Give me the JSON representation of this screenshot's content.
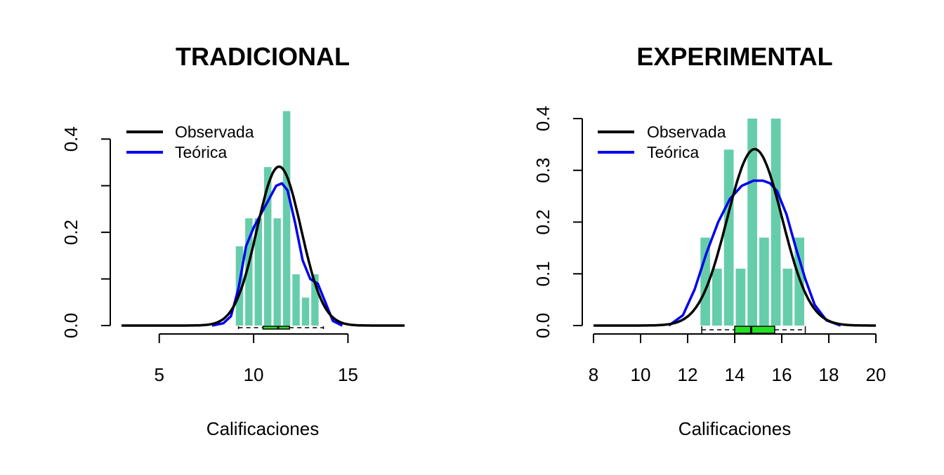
{
  "colors": {
    "bars": "#66CDAA",
    "observed": "#000000",
    "theoretical": "#0000EE",
    "boxplot": "#22E022"
  },
  "chart_data": [
    {
      "type": "bar",
      "subtype": "histogram_with_density",
      "title": "TRADICIONAL",
      "xlabel": "Calificaciones",
      "ylabel": "",
      "xlim": [
        3,
        18
      ],
      "ylim": [
        0,
        0.45
      ],
      "x_ticks": [
        5,
        10,
        15
      ],
      "x_tick_labels": [
        "5",
        "10",
        "15"
      ],
      "y_ticks": [
        0.0,
        0.1,
        0.2,
        0.3,
        0.4
      ],
      "y_tick_labels": [
        "0.0",
        "",
        "0.2",
        "",
        "0.4"
      ],
      "grid": false,
      "legend": {
        "position": "top-left",
        "entries": [
          {
            "label": "Observada",
            "color": "#000000"
          },
          {
            "label": "Teórica",
            "color": "#0000EE"
          }
        ]
      },
      "bars": [
        {
          "x0": 9.0,
          "x1": 9.5,
          "value": 0.17
        },
        {
          "x0": 9.5,
          "x1": 10.0,
          "value": 0.23
        },
        {
          "x0": 10.0,
          "x1": 10.5,
          "value": 0.23
        },
        {
          "x0": 10.5,
          "x1": 11.0,
          "value": 0.34
        },
        {
          "x0": 11.0,
          "x1": 11.5,
          "value": 0.23
        },
        {
          "x0": 11.5,
          "x1": 12.0,
          "value": 0.46
        },
        {
          "x0": 12.0,
          "x1": 12.5,
          "value": 0.11
        },
        {
          "x0": 12.5,
          "x1": 13.0,
          "value": 0.06
        },
        {
          "x0": 13.0,
          "x1": 13.5,
          "value": 0.11
        }
      ],
      "series": [
        {
          "name": "Observada",
          "kind": "normal",
          "mean": 11.35,
          "sd": 1.17,
          "x_range": [
            3,
            18
          ]
        },
        {
          "name": "Teórica",
          "kind": "density",
          "x": [
            7.8,
            8.4,
            8.8,
            9.2,
            9.6,
            10.0,
            10.4,
            10.8,
            11.2,
            11.5,
            11.8,
            12.2,
            12.6,
            13.0,
            13.4,
            13.8,
            14.2,
            14.7
          ],
          "y": [
            0.0,
            0.005,
            0.02,
            0.08,
            0.17,
            0.21,
            0.24,
            0.27,
            0.3,
            0.305,
            0.29,
            0.22,
            0.14,
            0.1,
            0.09,
            0.05,
            0.01,
            0.0
          ]
        }
      ],
      "boxplot": {
        "whisker_low": 9.2,
        "q1": 10.5,
        "median": 11.3,
        "q3": 11.9,
        "whisker_high": 13.7
      }
    },
    {
      "type": "bar",
      "subtype": "histogram_with_density",
      "title": "EXPERIMENTAL",
      "xlabel": "Calificaciones",
      "ylabel": "",
      "xlim": [
        8,
        20
      ],
      "ylim": [
        0,
        0.4
      ],
      "x_ticks": [
        8,
        10,
        12,
        14,
        16,
        18,
        20
      ],
      "x_tick_labels": [
        "8",
        "10",
        "12",
        "14",
        "16",
        "18",
        "20"
      ],
      "y_ticks": [
        0.0,
        0.1,
        0.2,
        0.3,
        0.4
      ],
      "y_tick_labels": [
        "0.0",
        "0.1",
        "0.2",
        "0.3",
        "0.4"
      ],
      "grid": false,
      "legend": {
        "position": "top-left",
        "entries": [
          {
            "label": "Observada",
            "color": "#000000"
          },
          {
            "label": "Teórica",
            "color": "#0000EE"
          }
        ]
      },
      "bars": [
        {
          "x0": 12.5,
          "x1": 13.0,
          "value": 0.17
        },
        {
          "x0": 13.0,
          "x1": 13.5,
          "value": 0.11
        },
        {
          "x0": 13.5,
          "x1": 14.0,
          "value": 0.34
        },
        {
          "x0": 14.0,
          "x1": 14.5,
          "value": 0.11
        },
        {
          "x0": 14.5,
          "x1": 15.0,
          "value": 0.4
        },
        {
          "x0": 15.0,
          "x1": 15.5,
          "value": 0.17
        },
        {
          "x0": 15.5,
          "x1": 16.0,
          "value": 0.4
        },
        {
          "x0": 16.0,
          "x1": 16.5,
          "value": 0.11
        },
        {
          "x0": 16.5,
          "x1": 17.0,
          "value": 0.17
        }
      ],
      "series": [
        {
          "name": "Observada",
          "kind": "normal",
          "mean": 14.85,
          "sd": 1.17,
          "x_range": [
            8,
            20
          ]
        },
        {
          "name": "Teórica",
          "kind": "density",
          "x": [
            11.2,
            11.8,
            12.3,
            12.8,
            13.3,
            13.8,
            14.3,
            14.8,
            15.2,
            15.5,
            15.8,
            16.2,
            16.6,
            17.0,
            17.4,
            17.9,
            18.5
          ],
          "y": [
            0.0,
            0.02,
            0.07,
            0.14,
            0.2,
            0.245,
            0.27,
            0.28,
            0.28,
            0.275,
            0.26,
            0.215,
            0.15,
            0.09,
            0.04,
            0.01,
            0.0
          ]
        }
      ],
      "boxplot": {
        "whisker_low": 12.6,
        "q1": 14.0,
        "median": 14.7,
        "q3": 15.7,
        "whisker_high": 17.0
      }
    }
  ]
}
